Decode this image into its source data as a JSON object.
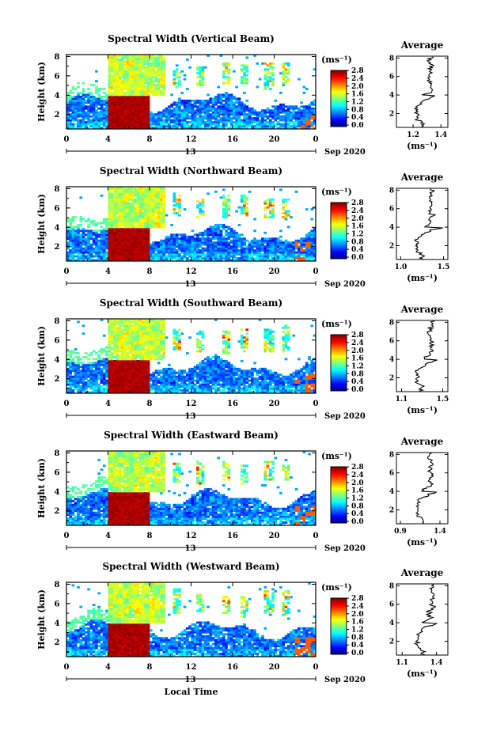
{
  "chart_data": [
    {
      "type": "heatmap",
      "title": "Spectral Width (Vertical Beam)",
      "ylabel": "Height (km)",
      "y_ticks": [
        "2",
        "4",
        "6",
        "8"
      ],
      "ylim": [
        0.5,
        8.2
      ],
      "x_ticks": [
        "0",
        "4",
        "8",
        "12",
        "16",
        "20",
        "0"
      ],
      "xlim": [
        0,
        24
      ],
      "date_label": "13",
      "date_right": "Sep 2020",
      "colorbar": {
        "unit": "(ms⁻¹)",
        "ticks": [
          "2.8",
          "2.4",
          "2.0",
          "1.6",
          "1.2",
          "0.8",
          "0.4",
          "0.0"
        ],
        "range": [
          0,
          2.8
        ]
      },
      "average": {
        "title": "Average",
        "xlabel": "(ms⁻¹)",
        "x_ticks": [
          "1.2",
          "1.4"
        ],
        "xlim": [
          1.08,
          1.45
        ],
        "y_ticks": [
          "2",
          "4",
          "6",
          "8"
        ],
        "ylim": [
          0.5,
          8.2
        ]
      }
    },
    {
      "type": "heatmap",
      "title": "Spectral Width (Northward Beam)",
      "ylabel": "Height (km)",
      "y_ticks": [
        "2",
        "4",
        "6",
        "8"
      ],
      "ylim": [
        0.5,
        8.2
      ],
      "x_ticks": [
        "0",
        "4",
        "8",
        "12",
        "16",
        "20",
        "0"
      ],
      "xlim": [
        0,
        24
      ],
      "date_label": "13",
      "date_right": "Sep 2020",
      "colorbar": {
        "unit": "(ms⁻¹)",
        "ticks": [
          "2.8",
          "2.4",
          "2.0",
          "1.6",
          "1.2",
          "0.8",
          "0.4",
          "0.0"
        ],
        "range": [
          0,
          2.8
        ]
      },
      "average": {
        "title": "Average",
        "xlabel": "(ms⁻¹)",
        "x_ticks": [
          "1.0",
          "1.5"
        ],
        "xlim": [
          0.95,
          1.55
        ],
        "y_ticks": [
          "2",
          "4",
          "6",
          "8"
        ],
        "ylim": [
          0.5,
          8.2
        ]
      }
    },
    {
      "type": "heatmap",
      "title": "Spectral Width (Southward Beam)",
      "ylabel": "Height (km)",
      "y_ticks": [
        "2",
        "4",
        "6",
        "8"
      ],
      "ylim": [
        0.5,
        8.2
      ],
      "x_ticks": [
        "0",
        "4",
        "8",
        "12",
        "16",
        "20",
        "0"
      ],
      "xlim": [
        0,
        24
      ],
      "date_label": "13",
      "date_right": "Sep 2020",
      "colorbar": {
        "unit": "(ms⁻¹)",
        "ticks": [
          "2.8",
          "2.4",
          "2.0",
          "1.6",
          "1.2",
          "0.8",
          "0.4",
          "0.0"
        ],
        "range": [
          0,
          2.8
        ]
      },
      "average": {
        "title": "Average",
        "xlabel": "(ms⁻¹)",
        "x_ticks": [
          "1.1",
          "1.5"
        ],
        "xlim": [
          1.05,
          1.55
        ],
        "y_ticks": [
          "2",
          "4",
          "6",
          "8"
        ],
        "ylim": [
          0.5,
          8.2
        ]
      }
    },
    {
      "type": "heatmap",
      "title": "Spectral Width (Eastward Beam)",
      "ylabel": "Height (km)",
      "y_ticks": [
        "2",
        "4",
        "6",
        "8"
      ],
      "ylim": [
        0.5,
        8.2
      ],
      "x_ticks": [
        "0",
        "4",
        "8",
        "12",
        "16",
        "20",
        "0"
      ],
      "xlim": [
        0,
        24
      ],
      "date_label": "13",
      "date_right": "Sep 2020",
      "colorbar": {
        "unit": "(ms⁻¹)",
        "ticks": [
          "2.8",
          "2.4",
          "2.0",
          "1.6",
          "1.2",
          "0.8",
          "0.4",
          "0.0"
        ],
        "range": [
          0,
          2.8
        ]
      },
      "average": {
        "title": "Average",
        "xlabel": "(ms⁻¹)",
        "x_ticks": [
          "0.9",
          "1.4"
        ],
        "xlim": [
          0.85,
          1.5
        ],
        "y_ticks": [
          "2",
          "4",
          "6",
          "8"
        ],
        "ylim": [
          0.5,
          8.2
        ]
      }
    },
    {
      "type": "heatmap",
      "title": "Spectral Width (Westward Beam)",
      "ylabel": "Height (km)",
      "y_ticks": [
        "2",
        "4",
        "6",
        "8"
      ],
      "ylim": [
        0.5,
        8.2
      ],
      "x_ticks": [
        "0",
        "4",
        "8",
        "12",
        "16",
        "20",
        "0"
      ],
      "xlim": [
        0,
        24
      ],
      "date_label": "13",
      "date_right": "Sep 2020",
      "x_label": "Local Time",
      "colorbar": {
        "unit": "(ms⁻¹)",
        "ticks": [
          "2.8",
          "2.4",
          "2.0",
          "1.6",
          "1.2",
          "0.8",
          "0.4",
          "0.0"
        ],
        "range": [
          0,
          2.8
        ]
      },
      "average": {
        "title": "Average",
        "xlabel": "(ms⁻¹)",
        "x_ticks": [
          "1.1",
          "1.4"
        ],
        "xlim": [
          1.05,
          1.5
        ],
        "y_ticks": [
          "2",
          "4",
          "6",
          "8"
        ],
        "ylim": [
          0.5,
          8.2
        ]
      }
    }
  ]
}
